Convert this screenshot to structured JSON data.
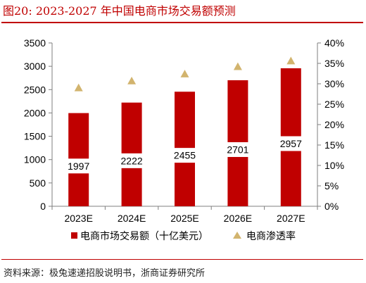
{
  "figure": {
    "label": "图20:",
    "title": "2023-2027 年中国电商市场交易额预测"
  },
  "source_note": "资料来源：极兔速递招股说明书，浙商证券研究所",
  "colors": {
    "bar": "#c00000",
    "marker": "#d2b46e",
    "axis": "#7f7f7f",
    "accent": "#c00000"
  },
  "chart_data": {
    "type": "bar",
    "categories": [
      "2023E",
      "2024E",
      "2025E",
      "2026E",
      "2027E"
    ],
    "series": [
      {
        "name": "电商市场交易额（十亿美元）",
        "kind": "bar",
        "axis": "left",
        "values": [
          1997,
          2222,
          2455,
          2701,
          2957
        ],
        "labels": [
          "1997",
          "2222",
          "2455",
          "2701",
          "2957"
        ]
      },
      {
        "name": "电商渗透率",
        "kind": "marker",
        "marker": "triangle",
        "axis": "right",
        "values": [
          29.0,
          30.7,
          32.4,
          34.2,
          35.6
        ]
      }
    ],
    "y_left": {
      "min": 0,
      "max": 3500,
      "ticks": [
        "0",
        "500",
        "1000",
        "1500",
        "2000",
        "2500",
        "3000",
        "3500"
      ]
    },
    "y_right": {
      "min": 0,
      "max": 40,
      "ticks": [
        "0%",
        "5%",
        "10%",
        "15%",
        "20%",
        "25%",
        "30%",
        "35%",
        "40%"
      ]
    },
    "grid": false,
    "legend": "bottom"
  }
}
